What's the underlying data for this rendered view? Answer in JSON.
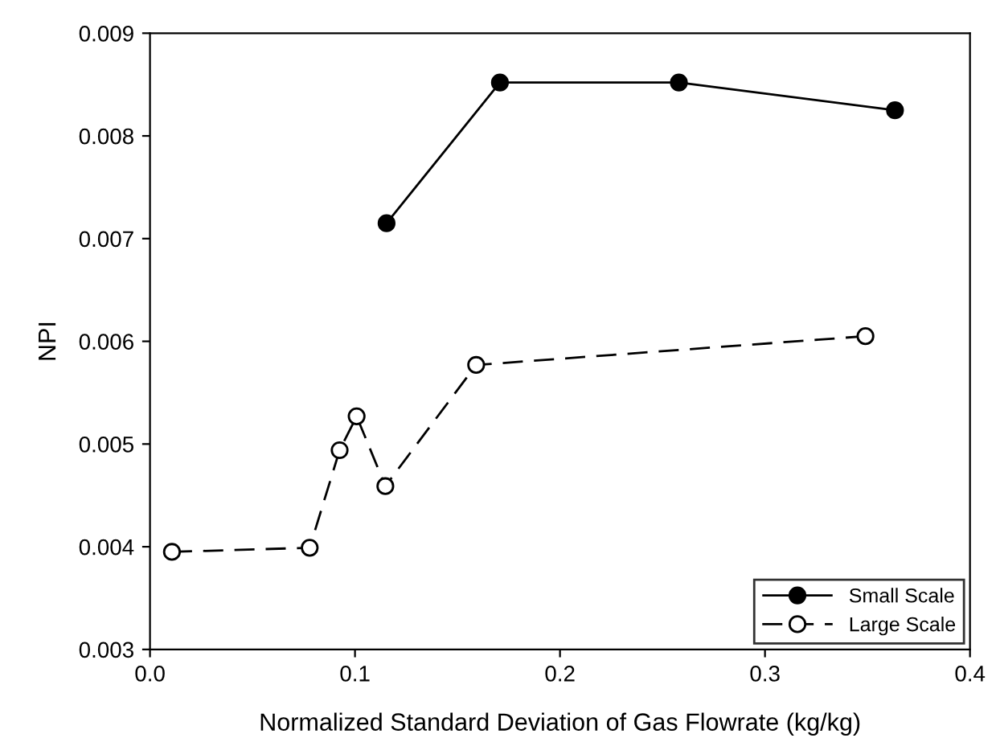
{
  "chart_data": {
    "type": "line",
    "xlabel": "Normalized Standard Deviation of Gas Flowrate (kg/kg)",
    "ylabel": "NPI",
    "xlim": [
      0,
      0.4
    ],
    "xticks": [
      {
        "value": 0,
        "label": "0.0"
      },
      0.1,
      0.2,
      0.3,
      0.4
    ],
    "ylim": [
      0.003,
      0.009
    ],
    "yticks": [
      0.003,
      0.004,
      0.005,
      0.006,
      0.007,
      0.008,
      0.009
    ],
    "grid": false,
    "legend": "bottom right",
    "marker": "circle",
    "series": [
      {
        "name": "Small Scale",
        "color": "#000000",
        "line_style": "solid",
        "x": [
          0.1154,
          0.1707,
          0.258,
          0.3634
        ],
        "values": [
          0.00715,
          0.00852,
          0.00852,
          0.00825
        ]
      },
      {
        "name": "Large Scale",
        "color": "#000000",
        "line_style": "dashed",
        "x": [
          0.0107,
          0.0779,
          0.0925,
          0.1008,
          0.1148,
          0.1591,
          0.349
        ],
        "values": [
          0.00395,
          0.00399,
          0.00494,
          0.00527,
          0.00459,
          0.00577,
          0.00605
        ]
      }
    ]
  }
}
